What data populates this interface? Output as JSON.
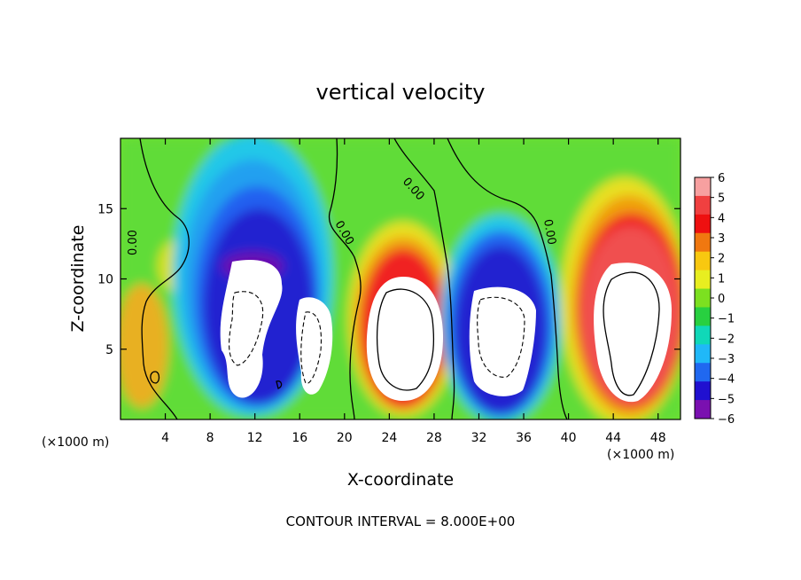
{
  "chart_data": {
    "type": "heatmap",
    "title": "vertical velocity",
    "xlabel": "X-coordinate",
    "ylabel": "Z-coordinate",
    "x_unit_left": "(×1000 m)",
    "x_unit_right": "(×1000 m)",
    "xlim": [
      0,
      50
    ],
    "ylim": [
      0,
      20
    ],
    "xticks": [
      4,
      8,
      12,
      16,
      20,
      24,
      28,
      32,
      36,
      40,
      44,
      48
    ],
    "yticks": [
      5,
      10,
      15
    ],
    "colorbar": {
      "ticks": [
        "6",
        "5",
        "4",
        "3",
        "2",
        "1",
        "0",
        "−1",
        "−2",
        "−3",
        "−4",
        "−5",
        "−6"
      ],
      "range": [
        -6,
        6
      ],
      "colors": [
        "#f7a0a0",
        "#f04040",
        "#ee1010",
        "#f07810",
        "#f8c810",
        "#e8ee20",
        "#7ce020",
        "#28d040",
        "#10d8b8",
        "#20b8f8",
        "#2068f0",
        "#2010d0",
        "#7a10b0"
      ]
    },
    "contour_labels": [
      "0.00",
      "0.00",
      "0.00",
      "0.00",
      "0.00"
    ],
    "footer": "CONTOUR INTERVAL = 8.000E+00"
  }
}
